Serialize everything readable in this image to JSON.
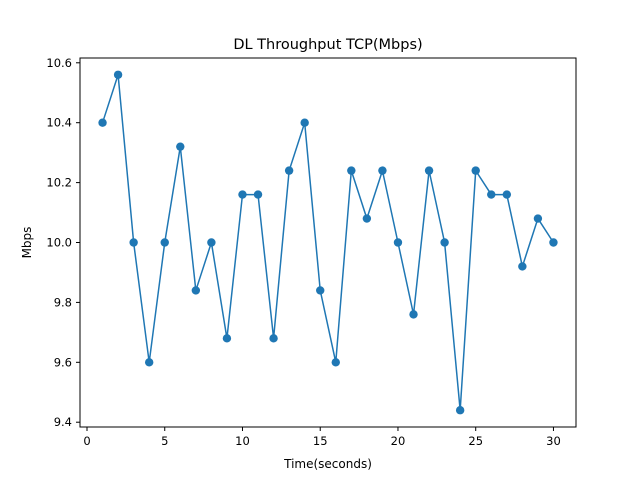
{
  "chart_data": {
    "type": "line",
    "title": "DL Throughput TCP(Mbps)",
    "xlabel": "Time(seconds)",
    "ylabel": "Mbps",
    "xlim": [
      -0.45,
      31.45
    ],
    "ylim": [
      9.384,
      10.616
    ],
    "xticks": [
      0,
      5,
      10,
      15,
      20,
      25,
      30
    ],
    "xtick_labels": [
      "0",
      "5",
      "10",
      "15",
      "20",
      "25",
      "30"
    ],
    "yticks": [
      9.4,
      9.6,
      9.8,
      10.0,
      10.2,
      10.4,
      10.6
    ],
    "ytick_labels": [
      "9.4",
      "9.6",
      "9.8",
      "10.0",
      "10.2",
      "10.4",
      "10.6"
    ],
    "grid": false,
    "marker": "circle",
    "color": "#1f77b4",
    "x": [
      1,
      2,
      3,
      4,
      5,
      6,
      7,
      8,
      9,
      10,
      11,
      12,
      13,
      14,
      15,
      16,
      17,
      18,
      19,
      20,
      21,
      22,
      23,
      24,
      25,
      26,
      27,
      28,
      29,
      30
    ],
    "values": [
      10.4,
      10.56,
      10.0,
      9.6,
      10.0,
      10.32,
      9.84,
      10.0,
      9.68,
      10.16,
      10.16,
      9.68,
      10.24,
      10.4,
      9.84,
      9.6,
      10.24,
      10.08,
      10.24,
      10.0,
      9.76,
      10.24,
      10.0,
      9.44,
      10.24,
      10.16,
      10.16,
      9.92,
      10.08,
      10.0
    ]
  }
}
